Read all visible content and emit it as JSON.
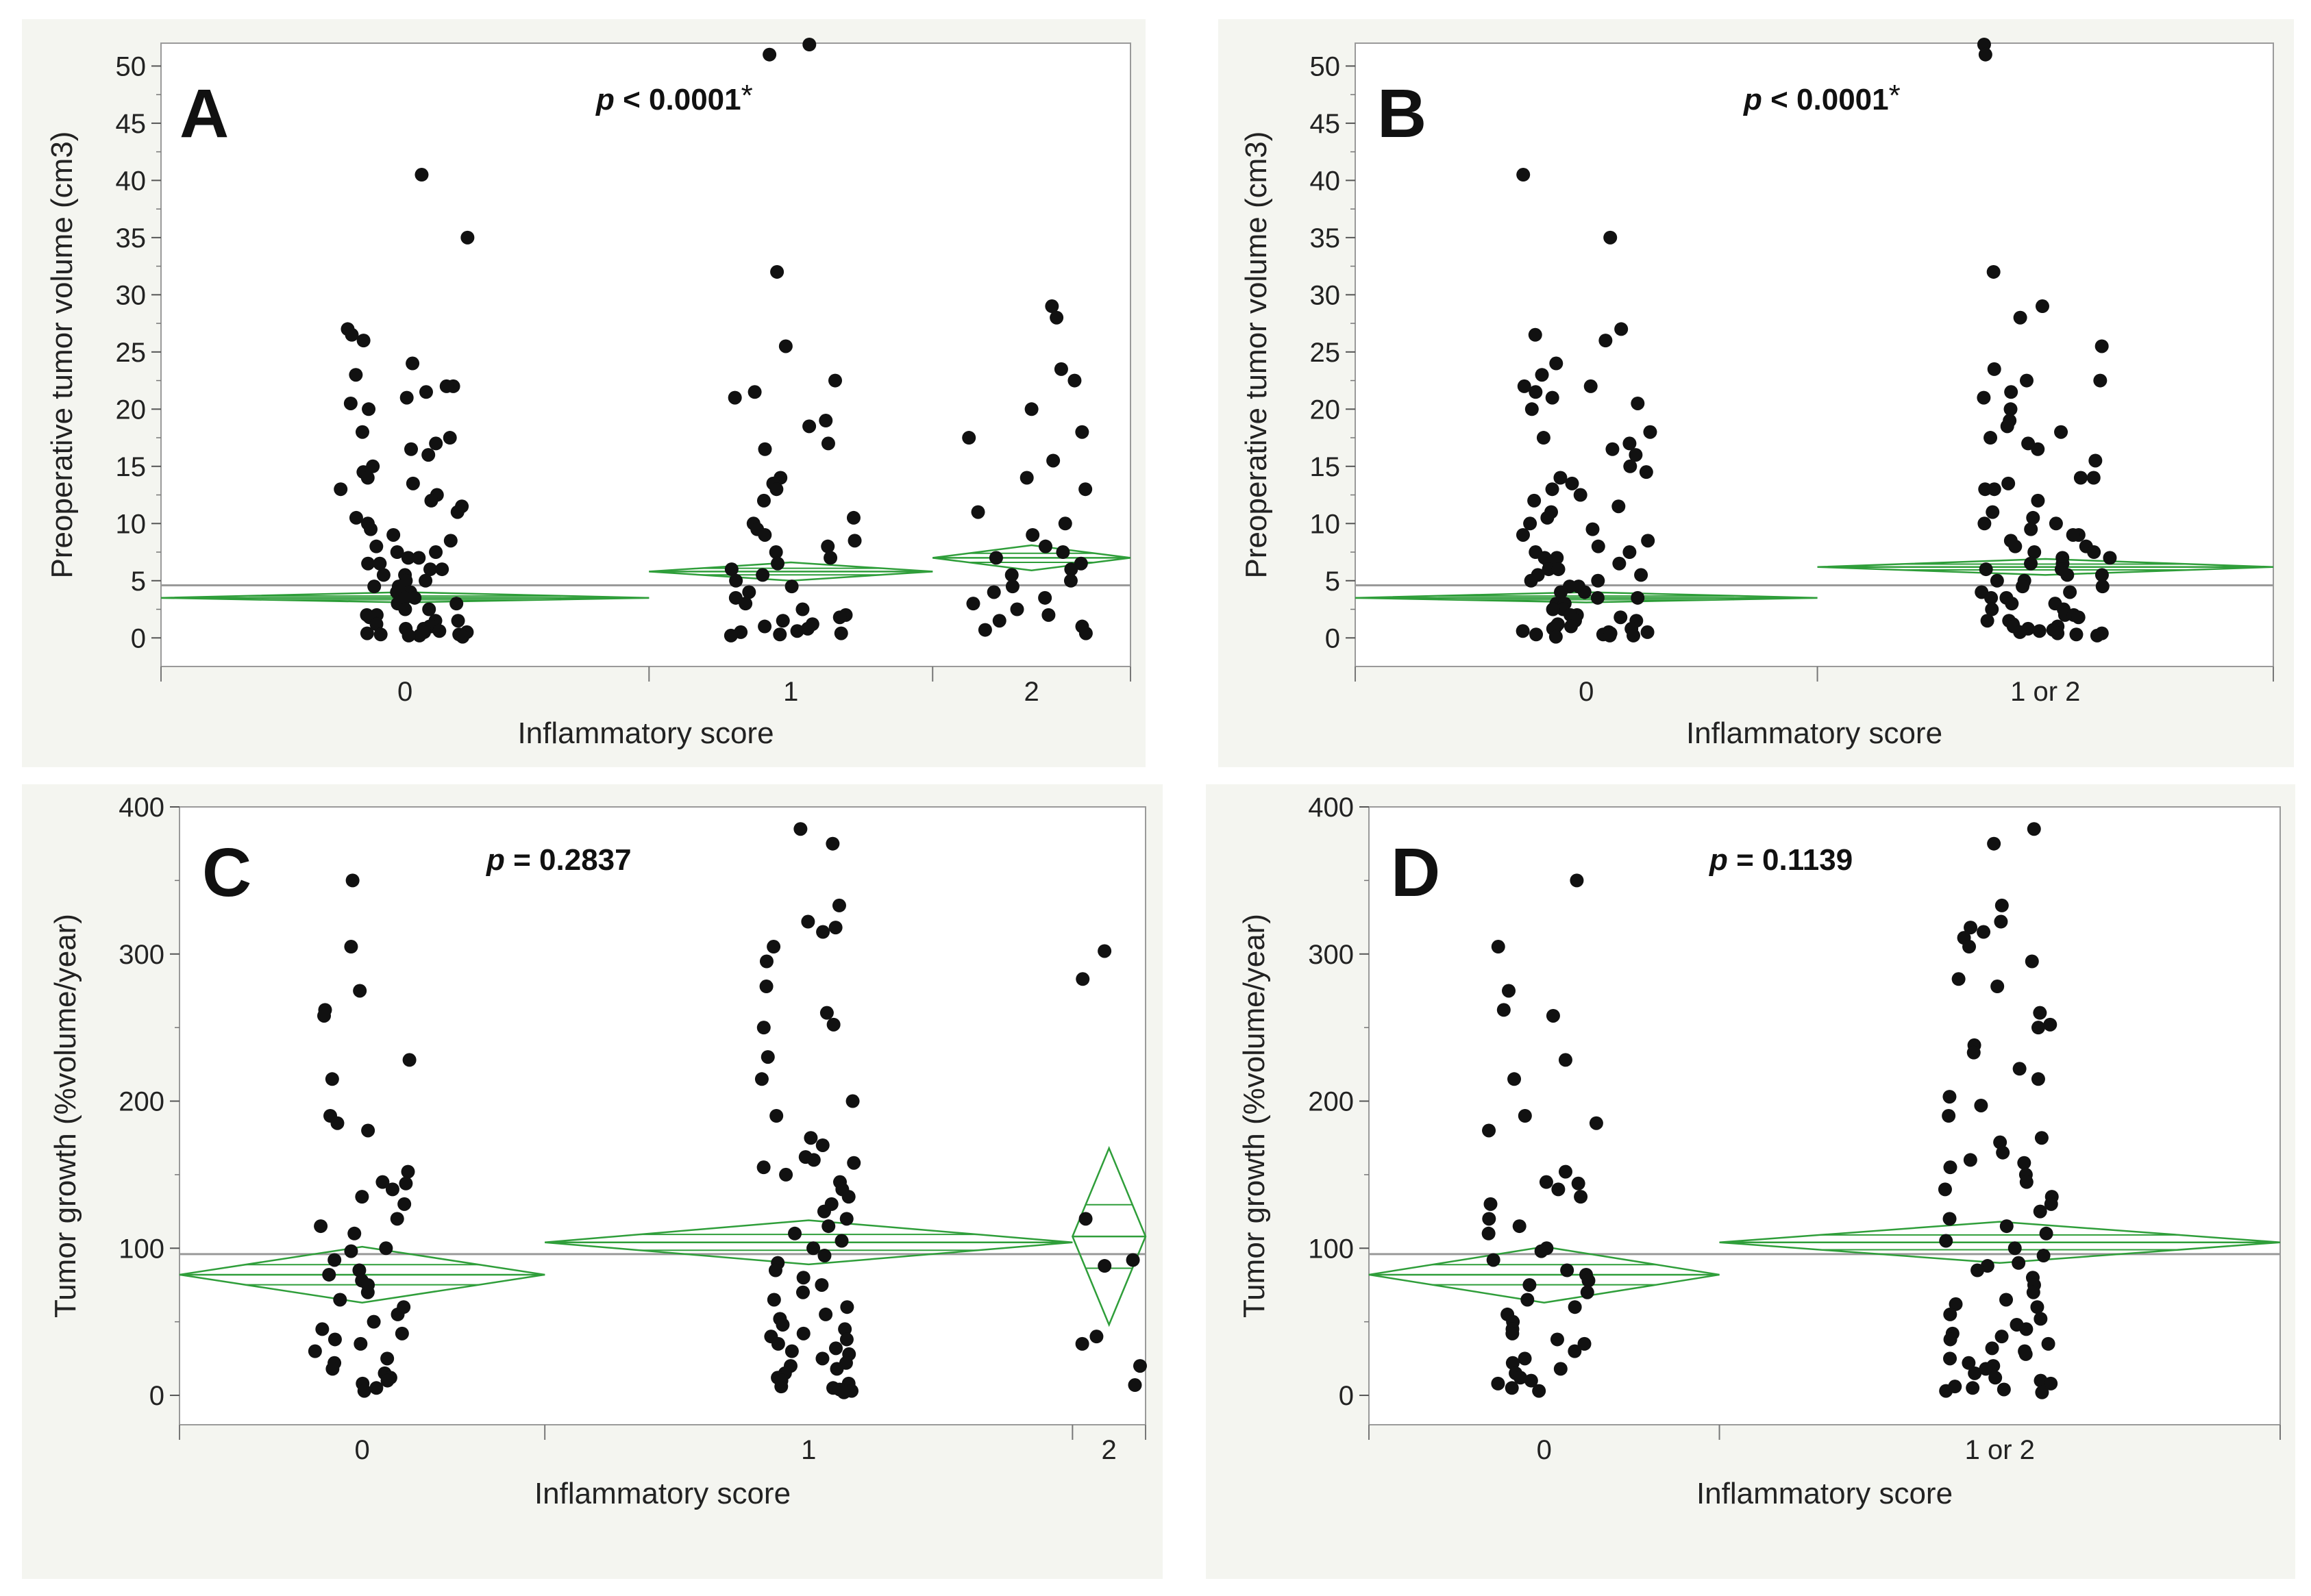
{
  "chart_data": [
    {
      "panel": "A",
      "type": "scatter",
      "p_label": "p",
      "p_text": " < 0.0001",
      "p_star": "*",
      "xlabel": "Inflammatory score",
      "ylabel": "Preoperative tumor volume (cm3)",
      "ylim": [
        -2.5,
        52
      ],
      "yticks": [
        0,
        5,
        10,
        15,
        20,
        25,
        30,
        35,
        40,
        45,
        50
      ],
      "grand_mean": 4.6,
      "groups": [
        {
          "label": "0",
          "mean": 3.5,
          "ci": [
            3.1,
            4.0
          ],
          "values": [
            40.5,
            35.0,
            27.0,
            26.5,
            26.0,
            24.0,
            23.0,
            22.0,
            22.0,
            21.5,
            21.0,
            20.5,
            20.0,
            18.0,
            17.5,
            17.0,
            16.5,
            16.0,
            15.0,
            14.5,
            14.0,
            13.5,
            13.0,
            12.5,
            12.0,
            11.5,
            11.0,
            10.5,
            10.0,
            9.5,
            9.0,
            8.5,
            8.0,
            7.5,
            7.5,
            7.0,
            7.0,
            6.5,
            6.5,
            6.0,
            6.0,
            5.5,
            5.5,
            5.0,
            5.0,
            4.5,
            4.5,
            4.0,
            4.0,
            3.5,
            3.5,
            3.0,
            3.0,
            2.5,
            2.5,
            2.0,
            2.0,
            1.8,
            1.5,
            1.5,
            1.2,
            1.0,
            1.0,
            0.8,
            0.8,
            0.6,
            0.5,
            0.5,
            0.4,
            0.3,
            0.3,
            0.2,
            0.2,
            0.1
          ]
        },
        {
          "label": "1",
          "mean": 5.8,
          "ci": [
            5.0,
            6.6
          ],
          "values": [
            52.0,
            51.0,
            32.0,
            25.5,
            22.5,
            21.5,
            21.0,
            19.0,
            18.5,
            17.0,
            16.5,
            14.0,
            13.5,
            13.0,
            12.0,
            10.5,
            10.0,
            9.5,
            9.0,
            8.5,
            8.0,
            7.5,
            7.0,
            6.5,
            6.0,
            5.5,
            5.0,
            4.5,
            4.0,
            3.5,
            3.0,
            2.5,
            2.0,
            1.8,
            1.5,
            1.2,
            1.0,
            0.8,
            0.6,
            0.5,
            0.4,
            0.3,
            0.2
          ]
        },
        {
          "label": "2",
          "mean": 7.0,
          "ci": [
            5.9,
            8.1
          ],
          "values": [
            29.0,
            28.0,
            23.5,
            22.5,
            20.0,
            18.0,
            17.5,
            15.5,
            14.0,
            13.0,
            11.0,
            10.0,
            9.0,
            8.0,
            7.5,
            7.0,
            6.5,
            6.0,
            5.5,
            5.0,
            4.5,
            4.0,
            3.5,
            3.0,
            2.5,
            2.0,
            1.5,
            1.0,
            0.7,
            0.4
          ]
        }
      ]
    },
    {
      "panel": "B",
      "type": "scatter",
      "p_label": "p",
      "p_text": " < 0.0001",
      "p_star": "*",
      "xlabel": "Inflammatory score",
      "ylabel": "Preoperative tumor volume (cm3)",
      "ylim": [
        -2.5,
        52
      ],
      "yticks": [
        0,
        5,
        10,
        15,
        20,
        25,
        30,
        35,
        40,
        45,
        50
      ],
      "grand_mean": 4.6,
      "groups": [
        {
          "label": "0",
          "mean": 3.5,
          "ci": [
            3.1,
            4.0
          ],
          "values": [
            40.5,
            35.0,
            27.0,
            26.5,
            26.0,
            24.0,
            23.0,
            22.0,
            22.0,
            21.5,
            21.0,
            20.5,
            20.0,
            18.0,
            17.5,
            17.0,
            16.5,
            16.0,
            15.0,
            14.5,
            14.0,
            13.5,
            13.0,
            12.5,
            12.0,
            11.5,
            11.0,
            10.5,
            10.0,
            9.5,
            9.0,
            8.5,
            8.0,
            7.5,
            7.5,
            7.0,
            7.0,
            6.5,
            6.5,
            6.0,
            6.0,
            5.5,
            5.5,
            5.0,
            5.0,
            4.5,
            4.5,
            4.0,
            4.0,
            3.5,
            3.5,
            3.0,
            3.0,
            2.5,
            2.5,
            2.0,
            2.0,
            1.8,
            1.5,
            1.5,
            1.2,
            1.0,
            1.0,
            0.8,
            0.8,
            0.6,
            0.5,
            0.5,
            0.4,
            0.3,
            0.3,
            0.2,
            0.2,
            0.1
          ]
        },
        {
          "label": "1 or 2",
          "mean": 6.2,
          "ci": [
            5.5,
            6.9
          ],
          "values": [
            52.0,
            51.0,
            32.0,
            29.0,
            28.0,
            25.5,
            23.5,
            22.5,
            22.5,
            21.5,
            21.0,
            20.0,
            19.0,
            18.5,
            18.0,
            17.5,
            17.0,
            16.5,
            15.5,
            14.0,
            14.0,
            13.5,
            13.0,
            13.0,
            12.0,
            11.0,
            10.5,
            10.0,
            10.0,
            9.5,
            9.0,
            9.0,
            8.5,
            8.0,
            8.0,
            7.5,
            7.5,
            7.0,
            7.0,
            6.5,
            6.5,
            6.0,
            6.0,
            5.5,
            5.5,
            5.0,
            5.0,
            4.5,
            4.5,
            4.0,
            4.0,
            3.5,
            3.5,
            3.0,
            3.0,
            2.5,
            2.5,
            2.0,
            2.0,
            1.8,
            1.5,
            1.5,
            1.2,
            1.0,
            1.0,
            0.8,
            0.7,
            0.6,
            0.5,
            0.4,
            0.4,
            0.3,
            0.2
          ]
        }
      ]
    },
    {
      "panel": "C",
      "type": "scatter",
      "p_label": "p",
      "p_text": " = 0.2837",
      "p_star": "",
      "xlabel": "Inflammatory score",
      "ylabel": "Tumor growth (%volume/year)",
      "ylim": [
        -20,
        400
      ],
      "yticks": [
        0,
        100,
        200,
        300,
        400
      ],
      "grand_mean": 96,
      "groups": [
        {
          "label": "0",
          "mean": 82,
          "ci": [
            63,
            101
          ],
          "values": [
            350,
            305,
            275,
            262,
            258,
            228,
            215,
            190,
            185,
            180,
            152,
            145,
            144,
            140,
            135,
            130,
            120,
            115,
            110,
            100,
            98,
            92,
            85,
            82,
            78,
            75,
            70,
            65,
            60,
            55,
            50,
            45,
            42,
            38,
            35,
            30,
            25,
            22,
            18,
            15,
            12,
            10,
            8,
            5,
            3
          ]
        },
        {
          "label": "1",
          "mean": 104,
          "ci": [
            89,
            119
          ],
          "values": [
            385,
            375,
            333,
            322,
            318,
            315,
            305,
            295,
            278,
            260,
            252,
            250,
            230,
            215,
            200,
            190,
            175,
            170,
            162,
            160,
            158,
            155,
            150,
            145,
            140,
            135,
            130,
            125,
            120,
            115,
            110,
            105,
            100,
            95,
            90,
            85,
            80,
            75,
            70,
            65,
            60,
            55,
            52,
            48,
            45,
            42,
            40,
            38,
            35,
            32,
            30,
            28,
            25,
            22,
            20,
            18,
            15,
            12,
            10,
            8,
            6,
            5,
            4,
            3,
            2
          ]
        },
        {
          "label": "2",
          "mean": 108,
          "ci": [
            48,
            168
          ],
          "values": [
            302,
            283,
            120,
            92,
            88,
            40,
            35,
            20,
            7
          ]
        }
      ]
    },
    {
      "panel": "D",
      "type": "scatter",
      "p_label": "p",
      "p_text": " = 0.1139",
      "p_star": "",
      "xlabel": "Inflammatory score",
      "ylabel": "Tumor growth (%volume/year)",
      "ylim": [
        -20,
        400
      ],
      "yticks": [
        0,
        100,
        200,
        300,
        400
      ],
      "grand_mean": 96,
      "groups": [
        {
          "label": "0",
          "mean": 82,
          "ci": [
            63,
            101
          ],
          "values": [
            350,
            305,
            275,
            262,
            258,
            228,
            215,
            190,
            185,
            180,
            152,
            145,
            144,
            140,
            135,
            130,
            120,
            115,
            110,
            100,
            98,
            92,
            85,
            82,
            78,
            75,
            70,
            65,
            60,
            55,
            50,
            45,
            42,
            38,
            35,
            30,
            25,
            22,
            18,
            15,
            12,
            10,
            8,
            5,
            3
          ]
        },
        {
          "label": "1 or 2",
          "mean": 104,
          "ci": [
            90,
            118
          ],
          "values": [
            385,
            375,
            333,
            322,
            318,
            315,
            311,
            305,
            295,
            283,
            278,
            260,
            252,
            250,
            238,
            233,
            222,
            215,
            203,
            197,
            190,
            175,
            172,
            165,
            160,
            158,
            155,
            150,
            145,
            140,
            135,
            130,
            125,
            120,
            115,
            110,
            105,
            100,
            95,
            90,
            88,
            85,
            80,
            75,
            70,
            65,
            62,
            60,
            55,
            52,
            48,
            45,
            42,
            40,
            38,
            35,
            32,
            30,
            28,
            25,
            22,
            20,
            18,
            15,
            12,
            10,
            8,
            6,
            5,
            4,
            3,
            2
          ]
        }
      ]
    }
  ]
}
